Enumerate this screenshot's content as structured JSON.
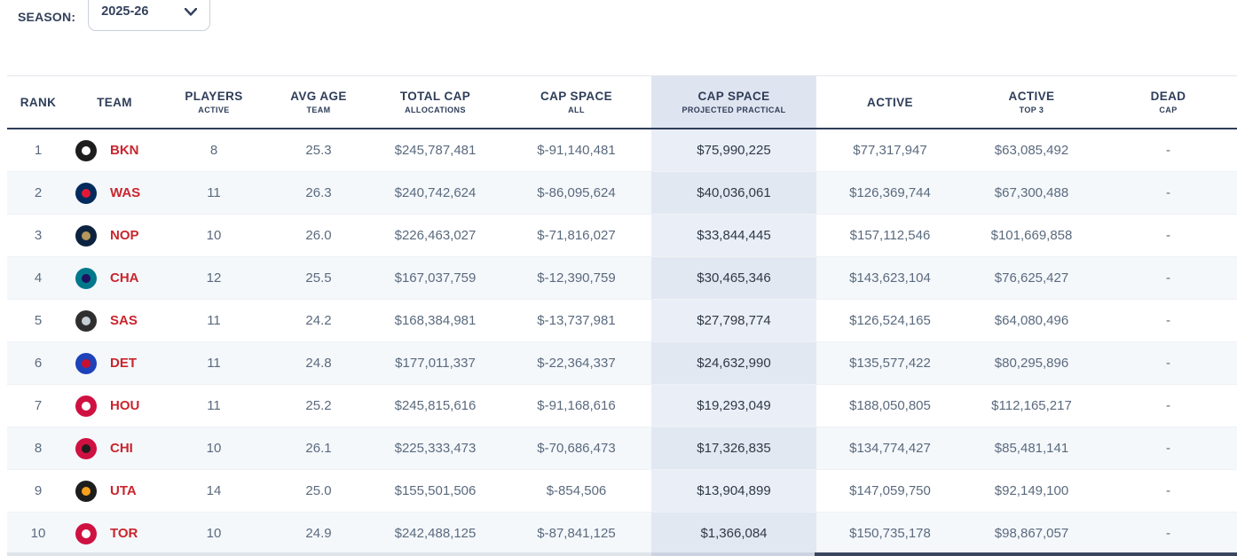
{
  "season": {
    "label": "SEASON:",
    "value": "2025-26"
  },
  "colors": {
    "accent_red": "#c9252d",
    "header_navy": "#2e3d59",
    "highlight_header_bg": "#dfe5f0",
    "highlight_cell_bg": "#eaeef7",
    "stripe_bg": "#f5f8fb"
  },
  "table": {
    "columns": [
      {
        "title": "RANK",
        "sub": ""
      },
      {
        "title": "TEAM",
        "sub": ""
      },
      {
        "title": "PLAYERS",
        "sub": "ACTIVE"
      },
      {
        "title": "AVG AGE",
        "sub": "TEAM"
      },
      {
        "title": "TOTAL CAP",
        "sub": "ALLOCATIONS"
      },
      {
        "title": "CAP SPACE",
        "sub": "ALL"
      },
      {
        "title": "CAP SPACE",
        "sub": "PROJECTED PRACTICAL",
        "highlight": true
      },
      {
        "title": "ACTIVE",
        "sub": ""
      },
      {
        "title": "ACTIVE",
        "sub": "TOP 3"
      },
      {
        "title": "DEAD",
        "sub": "CAP"
      }
    ],
    "rows": [
      {
        "rank": "1",
        "team": "BKN",
        "logo_primary": "#1d1d1d",
        "logo_secondary": "#ffffff",
        "players": "8",
        "avg_age": "25.3",
        "total_cap": "$245,787,481",
        "cap_space_all": "$-91,140,481",
        "cap_space_projected": "$75,990,225",
        "active": "$77,317,947",
        "active_top3": "$63,085,492",
        "dead_cap": "-"
      },
      {
        "rank": "2",
        "team": "WAS",
        "logo_primary": "#002b5c",
        "logo_secondary": "#e31837",
        "players": "11",
        "avg_age": "26.3",
        "total_cap": "$240,742,624",
        "cap_space_all": "$-86,095,624",
        "cap_space_projected": "$40,036,061",
        "active": "$126,369,744",
        "active_top3": "$67,300,488",
        "dead_cap": "-"
      },
      {
        "rank": "3",
        "team": "NOP",
        "logo_primary": "#0c2340",
        "logo_secondary": "#b4975a",
        "players": "10",
        "avg_age": "26.0",
        "total_cap": "$226,463,027",
        "cap_space_all": "$-71,816,027",
        "cap_space_projected": "$33,844,445",
        "active": "$157,112,546",
        "active_top3": "$101,669,858",
        "dead_cap": "-"
      },
      {
        "rank": "4",
        "team": "CHA",
        "logo_primary": "#00788c",
        "logo_secondary": "#1d1160",
        "players": "12",
        "avg_age": "25.5",
        "total_cap": "$167,037,759",
        "cap_space_all": "$-12,390,759",
        "cap_space_projected": "$30,465,346",
        "active": "$143,623,104",
        "active_top3": "$76,625,427",
        "dead_cap": "-"
      },
      {
        "rank": "5",
        "team": "SAS",
        "logo_primary": "#2f2f2f",
        "logo_secondary": "#c4ced4",
        "players": "11",
        "avg_age": "24.2",
        "total_cap": "$168,384,981",
        "cap_space_all": "$-13,737,981",
        "cap_space_projected": "$27,798,774",
        "active": "$126,524,165",
        "active_top3": "$64,080,496",
        "dead_cap": "-"
      },
      {
        "rank": "6",
        "team": "DET",
        "logo_primary": "#1d42ba",
        "logo_secondary": "#c8102e",
        "players": "11",
        "avg_age": "24.8",
        "total_cap": "$177,011,337",
        "cap_space_all": "$-22,364,337",
        "cap_space_projected": "$24,632,990",
        "active": "$135,577,422",
        "active_top3": "$80,295,896",
        "dead_cap": "-"
      },
      {
        "rank": "7",
        "team": "HOU",
        "logo_primary": "#ce1141",
        "logo_secondary": "#ffffff",
        "players": "11",
        "avg_age": "25.2",
        "total_cap": "$245,815,616",
        "cap_space_all": "$-91,168,616",
        "cap_space_projected": "$19,293,049",
        "active": "$188,050,805",
        "active_top3": "$112,165,217",
        "dead_cap": "-"
      },
      {
        "rank": "8",
        "team": "CHI",
        "logo_primary": "#ce1141",
        "logo_secondary": "#1d1d1d",
        "players": "10",
        "avg_age": "26.1",
        "total_cap": "$225,333,473",
        "cap_space_all": "$-70,686,473",
        "cap_space_projected": "$17,326,835",
        "active": "$134,774,427",
        "active_top3": "$85,481,141",
        "dead_cap": "-"
      },
      {
        "rank": "9",
        "team": "UTA",
        "logo_primary": "#1d1d1d",
        "logo_secondary": "#f9a01b",
        "players": "14",
        "avg_age": "25.0",
        "total_cap": "$155,501,506",
        "cap_space_all": "$-854,506",
        "cap_space_projected": "$13,904,899",
        "active": "$147,059,750",
        "active_top3": "$92,149,100",
        "dead_cap": "-"
      },
      {
        "rank": "10",
        "team": "TOR",
        "logo_primary": "#ce1141",
        "logo_secondary": "#ffffff",
        "players": "10",
        "avg_age": "24.9",
        "total_cap": "$242,488,125",
        "cap_space_all": "$-87,841,125",
        "cap_space_projected": "$1,366,084",
        "active": "$150,735,178",
        "active_top3": "$98,867,057",
        "dead_cap": "-"
      }
    ]
  }
}
